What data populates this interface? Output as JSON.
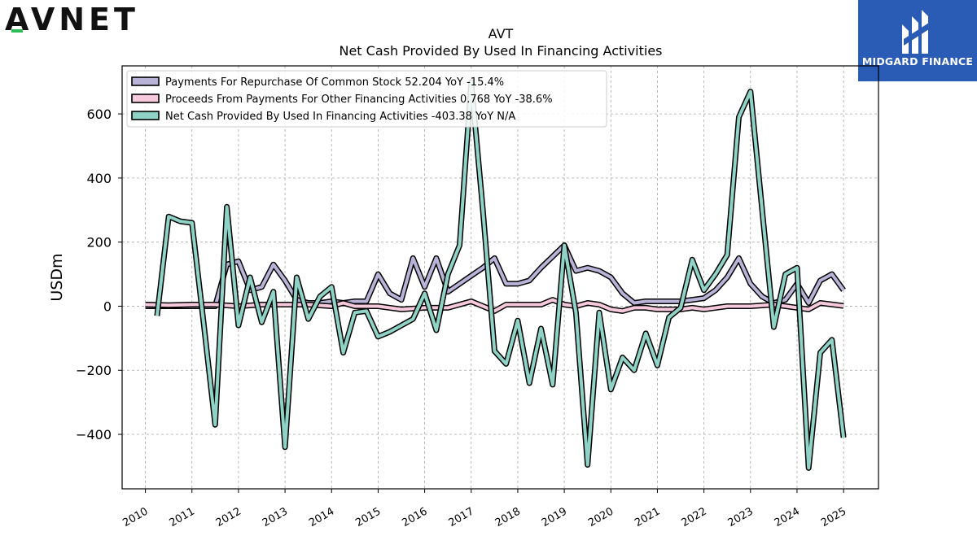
{
  "header": {
    "left_logo": "AVNET",
    "right_logo": "MIDGARD FINANCE"
  },
  "chart_data": {
    "type": "line",
    "title": "AVT",
    "subtitle": "Net Cash Provided By Used In Financing Activities",
    "xlabel": "",
    "ylabel": "USDm",
    "xlim": [
      2009.5,
      2025.75
    ],
    "ylim": [
      -570,
      750
    ],
    "grid": true,
    "legend_position": "top-left",
    "x_ticks": [
      2010,
      2011,
      2012,
      2013,
      2014,
      2015,
      2016,
      2017,
      2018,
      2019,
      2020,
      2021,
      2022,
      2023,
      2024,
      2025
    ],
    "y_ticks": [
      -400,
      -200,
      0,
      200,
      400,
      600
    ],
    "y_tick_labels": [
      "−400",
      "−200",
      "0",
      "200",
      "400",
      "600"
    ],
    "series": [
      {
        "name": "Payments For Repurchase Of Common Stock",
        "legend_label": "Payments For Repurchase Of Common Stock  52.204 YoY -15.4%",
        "color": "#b9b3d8",
        "points": [
          [
            2010.0,
            0
          ],
          [
            2010.5,
            0
          ],
          [
            2011.0,
            0
          ],
          [
            2011.5,
            0
          ],
          [
            2011.75,
            130
          ],
          [
            2012.0,
            140
          ],
          [
            2012.25,
            50
          ],
          [
            2012.5,
            60
          ],
          [
            2012.75,
            130
          ],
          [
            2013.0,
            80
          ],
          [
            2013.25,
            20
          ],
          [
            2013.5,
            10
          ],
          [
            2013.75,
            10
          ],
          [
            2014.0,
            15
          ],
          [
            2014.25,
            10
          ],
          [
            2014.5,
            15
          ],
          [
            2014.75,
            15
          ],
          [
            2015.0,
            100
          ],
          [
            2015.25,
            40
          ],
          [
            2015.5,
            20
          ],
          [
            2015.75,
            150
          ],
          [
            2016.0,
            60
          ],
          [
            2016.25,
            150
          ],
          [
            2016.5,
            45
          ],
          [
            2016.75,
            70
          ],
          [
            2017.0,
            95
          ],
          [
            2017.25,
            120
          ],
          [
            2017.5,
            150
          ],
          [
            2017.75,
            70
          ],
          [
            2018.0,
            70
          ],
          [
            2018.25,
            80
          ],
          [
            2018.5,
            120
          ],
          [
            2018.75,
            155
          ],
          [
            2019.0,
            190
          ],
          [
            2019.25,
            110
          ],
          [
            2019.5,
            120
          ],
          [
            2019.75,
            110
          ],
          [
            2020.0,
            90
          ],
          [
            2020.25,
            40
          ],
          [
            2020.5,
            10
          ],
          [
            2020.75,
            15
          ],
          [
            2021.0,
            15
          ],
          [
            2021.25,
            15
          ],
          [
            2021.5,
            15
          ],
          [
            2021.75,
            20
          ],
          [
            2022.0,
            25
          ],
          [
            2022.25,
            50
          ],
          [
            2022.5,
            90
          ],
          [
            2022.75,
            150
          ],
          [
            2023.0,
            70
          ],
          [
            2023.25,
            30
          ],
          [
            2023.5,
            10
          ],
          [
            2023.75,
            20
          ],
          [
            2024.0,
            70
          ],
          [
            2024.25,
            10
          ],
          [
            2024.5,
            80
          ],
          [
            2024.75,
            100
          ],
          [
            2025.0,
            50
          ]
        ]
      },
      {
        "name": "Proceeds From Payments For Other Financing Activities",
        "legend_label": "Proceeds From Payments For Other Financing Activities  0.768 YoY -38.6%",
        "color": "#f7c9dd",
        "points": [
          [
            2010.0,
            5
          ],
          [
            2010.5,
            3
          ],
          [
            2011.0,
            5
          ],
          [
            2011.5,
            5
          ],
          [
            2012.0,
            0
          ],
          [
            2012.5,
            5
          ],
          [
            2013.0,
            5
          ],
          [
            2013.5,
            5
          ],
          [
            2014.0,
            0
          ],
          [
            2014.25,
            10
          ],
          [
            2014.5,
            0
          ],
          [
            2015.0,
            0
          ],
          [
            2015.5,
            -10
          ],
          [
            2016.0,
            -5
          ],
          [
            2016.5,
            -5
          ],
          [
            2017.0,
            15
          ],
          [
            2017.5,
            -15
          ],
          [
            2017.75,
            5
          ],
          [
            2018.0,
            5
          ],
          [
            2018.5,
            5
          ],
          [
            2018.75,
            20
          ],
          [
            2019.0,
            5
          ],
          [
            2019.25,
            0
          ],
          [
            2019.5,
            10
          ],
          [
            2019.75,
            5
          ],
          [
            2020.0,
            -10
          ],
          [
            2020.25,
            -15
          ],
          [
            2020.5,
            -5
          ],
          [
            2020.75,
            -5
          ],
          [
            2021.0,
            -10
          ],
          [
            2021.5,
            -10
          ],
          [
            2021.75,
            -5
          ],
          [
            2022.0,
            -10
          ],
          [
            2022.5,
            0
          ],
          [
            2023.0,
            0
          ],
          [
            2023.5,
            5
          ],
          [
            2024.0,
            -5
          ],
          [
            2024.25,
            -10
          ],
          [
            2024.5,
            10
          ],
          [
            2025.0,
            1
          ]
        ]
      },
      {
        "name": "Net Cash Provided By Used In Financing Activities",
        "legend_label": "Net Cash Provided By Used In Financing Activities  -403.38 YoY N/A",
        "color": "#8ed3c6",
        "points": [
          [
            2010.25,
            -30
          ],
          [
            2010.5,
            280
          ],
          [
            2010.75,
            265
          ],
          [
            2011.0,
            260
          ],
          [
            2011.25,
            -50
          ],
          [
            2011.5,
            -370
          ],
          [
            2011.75,
            310
          ],
          [
            2012.0,
            -60
          ],
          [
            2012.25,
            90
          ],
          [
            2012.5,
            -50
          ],
          [
            2012.75,
            45
          ],
          [
            2013.0,
            -440
          ],
          [
            2013.25,
            90
          ],
          [
            2013.5,
            -40
          ],
          [
            2013.75,
            30
          ],
          [
            2014.0,
            60
          ],
          [
            2014.25,
            -145
          ],
          [
            2014.5,
            -20
          ],
          [
            2014.75,
            -15
          ],
          [
            2015.0,
            -95
          ],
          [
            2015.25,
            -80
          ],
          [
            2015.5,
            -60
          ],
          [
            2015.75,
            -40
          ],
          [
            2016.0,
            40
          ],
          [
            2016.25,
            -75
          ],
          [
            2016.5,
            100
          ],
          [
            2016.75,
            190
          ],
          [
            2017.0,
            700
          ],
          [
            2017.25,
            300
          ],
          [
            2017.5,
            -140
          ],
          [
            2017.75,
            -180
          ],
          [
            2018.0,
            -45
          ],
          [
            2018.25,
            -240
          ],
          [
            2018.5,
            -70
          ],
          [
            2018.75,
            -245
          ],
          [
            2019.0,
            190
          ],
          [
            2019.25,
            -20
          ],
          [
            2019.5,
            -495
          ],
          [
            2019.75,
            -20
          ],
          [
            2020.0,
            -260
          ],
          [
            2020.25,
            -160
          ],
          [
            2020.5,
            -200
          ],
          [
            2020.75,
            -85
          ],
          [
            2021.0,
            -185
          ],
          [
            2021.25,
            -35
          ],
          [
            2021.5,
            -5
          ],
          [
            2021.75,
            145
          ],
          [
            2022.0,
            50
          ],
          [
            2022.25,
            100
          ],
          [
            2022.5,
            160
          ],
          [
            2022.75,
            590
          ],
          [
            2023.0,
            670
          ],
          [
            2023.25,
            300
          ],
          [
            2023.5,
            -65
          ],
          [
            2023.75,
            100
          ],
          [
            2024.0,
            120
          ],
          [
            2024.25,
            -505
          ],
          [
            2024.5,
            -145
          ],
          [
            2024.75,
            -105
          ],
          [
            2025.0,
            -410
          ]
        ]
      }
    ]
  }
}
